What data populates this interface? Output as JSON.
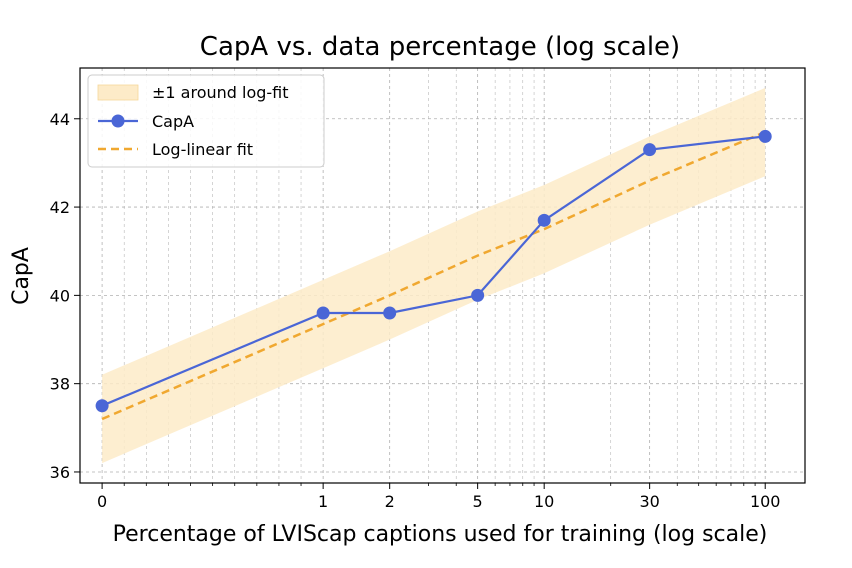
{
  "chart_data": {
    "type": "line",
    "title": "CapA vs. data percentage (log scale)",
    "xlabel": "Percentage of LVIScap captions used for training (log scale)",
    "ylabel": "CapA",
    "x_scale": "symlog",
    "x_ticks": [
      0,
      1,
      2,
      5,
      10,
      30,
      100
    ],
    "x_tick_labels": [
      "0",
      "1",
      "2",
      "5",
      "10",
      "30",
      "100"
    ],
    "y_ticks": [
      36,
      38,
      40,
      42,
      44
    ],
    "y_tick_labels": [
      "36",
      "38",
      "40",
      "42",
      "44"
    ],
    "ylim": [
      35.75,
      45.15
    ],
    "grid": true,
    "legend_position": "top-left",
    "series": [
      {
        "name": "CapA",
        "style": "line-marker",
        "color": "#4a66d6",
        "x": [
          0,
          1,
          2,
          5,
          10,
          30,
          100
        ],
        "y": [
          37.5,
          39.6,
          39.6,
          40.0,
          41.7,
          43.3,
          43.6
        ]
      },
      {
        "name": "Log-linear fit",
        "style": "dashed",
        "color": "#f0a830",
        "x": [
          0,
          1,
          2,
          5,
          10,
          30,
          100
        ],
        "y": [
          37.2,
          39.35,
          40.0,
          40.9,
          41.5,
          42.6,
          43.7
        ]
      }
    ],
    "band": {
      "name": "±1 around log-fit",
      "color": "#fdebc8",
      "offset": 1
    }
  }
}
